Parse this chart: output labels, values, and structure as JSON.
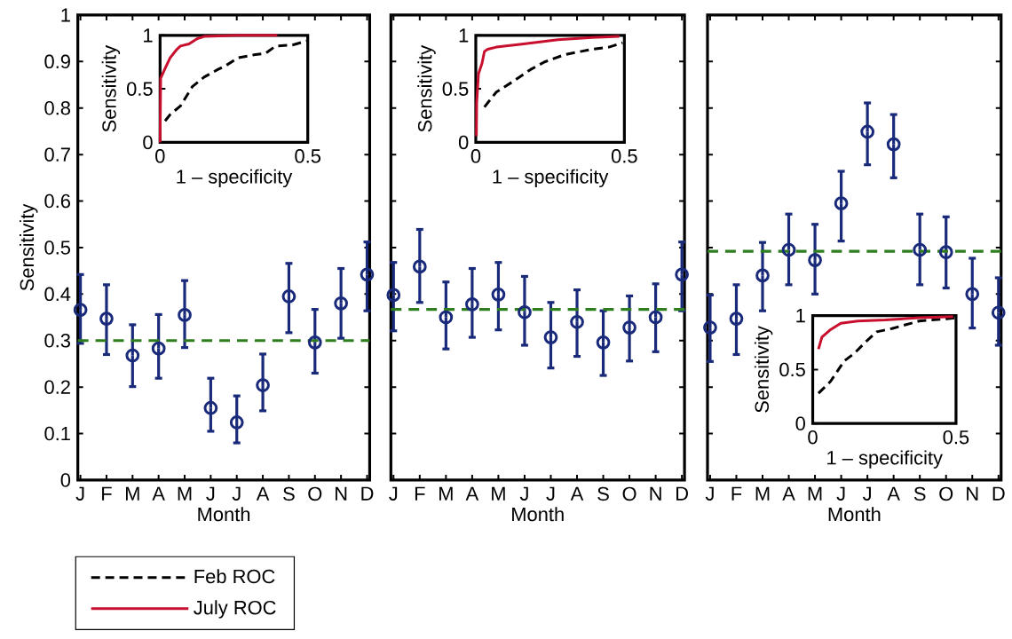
{
  "chart_data": [
    {
      "type": "scatter",
      "ylabel": "Sensitivity",
      "xlabel": "Month",
      "categories": [
        "J",
        "F",
        "M",
        "A",
        "M",
        "J",
        "J",
        "A",
        "S",
        "O",
        "N",
        "D"
      ],
      "color": "#1a2a7a",
      "marker": "circle",
      "values": [
        0.366,
        0.347,
        0.268,
        0.283,
        0.355,
        0.155,
        0.124,
        0.204,
        0.395,
        0.296,
        0.38,
        0.442
      ],
      "errors": [
        [
          0.294,
          0.442
        ],
        [
          0.27,
          0.42
        ],
        [
          0.201,
          0.334
        ],
        [
          0.219,
          0.356
        ],
        [
          0.285,
          0.429
        ],
        [
          0.105,
          0.219
        ],
        [
          0.08,
          0.181
        ],
        [
          0.149,
          0.271
        ],
        [
          0.317,
          0.466
        ],
        [
          0.23,
          0.367
        ],
        [
          0.305,
          0.455
        ],
        [
          0.364,
          0.512
        ]
      ],
      "ylim": [
        0,
        1
      ],
      "yticks": [
        0,
        0.1,
        0.2,
        0.3,
        0.4,
        0.5,
        0.6,
        0.7,
        0.8,
        0.9,
        1
      ],
      "ref_lines": [
        {
          "axis": "y",
          "value": 0.3,
          "color": "#2e7d1e",
          "line_style": "dashed"
        }
      ]
    },
    {
      "type": "line",
      "xlabel": "1 – specificity",
      "ylabel": "Sensitivity",
      "xlim": [
        0,
        0.5
      ],
      "xticks": [
        0,
        0.5
      ],
      "ylim": [
        0,
        1
      ],
      "yticks": [
        0,
        0.5,
        1
      ],
      "legend": "bottom left",
      "series": [
        {
          "name": "Feb ROC",
          "color": "#000000",
          "line_style": "dashed",
          "x": [
            0.017,
            0.034,
            0.069,
            0.109,
            0.149,
            0.195,
            0.224,
            0.264,
            0.322,
            0.356,
            0.391,
            0.448,
            0.5
          ],
          "values": [
            0.2,
            0.26,
            0.34,
            0.52,
            0.61,
            0.68,
            0.72,
            0.79,
            0.82,
            0.83,
            0.9,
            0.91,
            0.95
          ]
        },
        {
          "name": "July ROC",
          "color": "#c8102e",
          "line_style": "solid",
          "x": [
            0,
            0.002,
            0.017,
            0.034,
            0.057,
            0.069,
            0.098,
            0.126,
            0.149,
            0.264,
            0.397
          ],
          "values": [
            0,
            0.6,
            0.69,
            0.79,
            0.87,
            0.9,
            0.92,
            0.97,
            0.99,
            1,
            1
          ]
        }
      ]
    },
    {
      "type": "scatter",
      "xlabel": "Month",
      "categories": [
        "J",
        "F",
        "M",
        "A",
        "M",
        "J",
        "J",
        "A",
        "S",
        "O",
        "N",
        "D"
      ],
      "color": "#1a2a7a",
      "marker": "circle",
      "tick_labels": "x",
      "values": [
        0.398,
        0.459,
        0.35,
        0.378,
        0.399,
        0.361,
        0.307,
        0.34,
        0.296,
        0.328,
        0.35,
        0.442
      ],
      "errors": [
        [
          0.321,
          0.468
        ],
        [
          0.382,
          0.539
        ],
        [
          0.282,
          0.426
        ],
        [
          0.307,
          0.455
        ],
        [
          0.323,
          0.468
        ],
        [
          0.29,
          0.438
        ],
        [
          0.241,
          0.382
        ],
        [
          0.266,
          0.409
        ],
        [
          0.225,
          0.364
        ],
        [
          0.256,
          0.396
        ],
        [
          0.276,
          0.422
        ],
        [
          0.364,
          0.512
        ]
      ],
      "ylim": [
        0,
        1
      ],
      "yticks": [
        0,
        0.1,
        0.2,
        0.3,
        0.4,
        0.5,
        0.6,
        0.7,
        0.8,
        0.9,
        1
      ],
      "ref_lines": [
        {
          "axis": "y",
          "value": 0.367,
          "color": "#2e7d1e",
          "line_style": "dashed"
        }
      ]
    },
    {
      "type": "line",
      "xlabel": "1 – specificity",
      "ylabel": "Sensitivity",
      "xlim": [
        0,
        0.5
      ],
      "xticks": [
        0,
        0.5
      ],
      "ylim": [
        0,
        1
      ],
      "yticks": [
        0,
        0.5,
        1
      ],
      "series": [
        {
          "color": "#000000",
          "line_style": "dashed",
          "x": [
            0.029,
            0.069,
            0.126,
            0.184,
            0.23,
            0.299,
            0.391,
            0.448,
            0.494
          ],
          "values": [
            0.33,
            0.47,
            0.57,
            0.68,
            0.75,
            0.82,
            0.87,
            0.89,
            0.93
          ]
        },
        {
          "color": "#c8102e",
          "line_style": "solid",
          "x": [
            0.002,
            0.003,
            0.009,
            0.021,
            0.029,
            0.04,
            0.069,
            0.161,
            0.276,
            0.391,
            0.483
          ],
          "values": [
            0.06,
            0.37,
            0.64,
            0.74,
            0.85,
            0.87,
            0.89,
            0.92,
            0.96,
            0.98,
            0.99
          ]
        }
      ]
    },
    {
      "type": "scatter",
      "xlabel": "Month",
      "categories": [
        "J",
        "F",
        "M",
        "A",
        "M",
        "J",
        "J",
        "A",
        "S",
        "O",
        "N",
        "D"
      ],
      "color": "#1a2a7a",
      "marker": "circle",
      "tick_labels": "x",
      "values": [
        0.328,
        0.347,
        0.44,
        0.495,
        0.473,
        0.595,
        0.749,
        0.722,
        0.495,
        0.49,
        0.4,
        0.36
      ],
      "errors": [
        [
          0.255,
          0.398
        ],
        [
          0.27,
          0.42
        ],
        [
          0.364,
          0.511
        ],
        [
          0.42,
          0.572
        ],
        [
          0.4,
          0.55
        ],
        [
          0.514,
          0.664
        ],
        [
          0.678,
          0.811
        ],
        [
          0.65,
          0.786
        ],
        [
          0.42,
          0.572
        ],
        [
          0.413,
          0.566
        ],
        [
          0.327,
          0.477
        ],
        [
          0.29,
          0.435
        ]
      ],
      "ylim": [
        0,
        1
      ],
      "yticks": [
        0,
        0.1,
        0.2,
        0.3,
        0.4,
        0.5,
        0.6,
        0.7,
        0.8,
        0.9,
        1
      ],
      "ref_lines": [
        {
          "axis": "y",
          "value": 0.492,
          "color": "#2e7d1e",
          "line_style": "dashed"
        }
      ]
    },
    {
      "type": "line",
      "xlabel": "1 – specificity",
      "ylabel": "Sensitivity",
      "xlim": [
        0,
        0.5
      ],
      "xticks": [
        0,
        0.5
      ],
      "ylim": [
        0,
        1
      ],
      "yticks": [
        0,
        0.5,
        1
      ],
      "series": [
        {
          "color": "#000000",
          "line_style": "dashed",
          "x": [
            0.02,
            0.062,
            0.11,
            0.145,
            0.186,
            0.223,
            0.276,
            0.371,
            0.467,
            0.5
          ],
          "values": [
            0.28,
            0.39,
            0.58,
            0.65,
            0.76,
            0.85,
            0.88,
            0.95,
            0.97,
            0.98
          ]
        },
        {
          "color": "#c8102e",
          "line_style": "solid",
          "x": [
            0.02,
            0.032,
            0.062,
            0.098,
            0.157,
            0.252,
            0.371,
            0.49
          ],
          "values": [
            0.69,
            0.8,
            0.87,
            0.93,
            0.95,
            0.96,
            0.98,
            0.99
          ]
        }
      ]
    }
  ]
}
